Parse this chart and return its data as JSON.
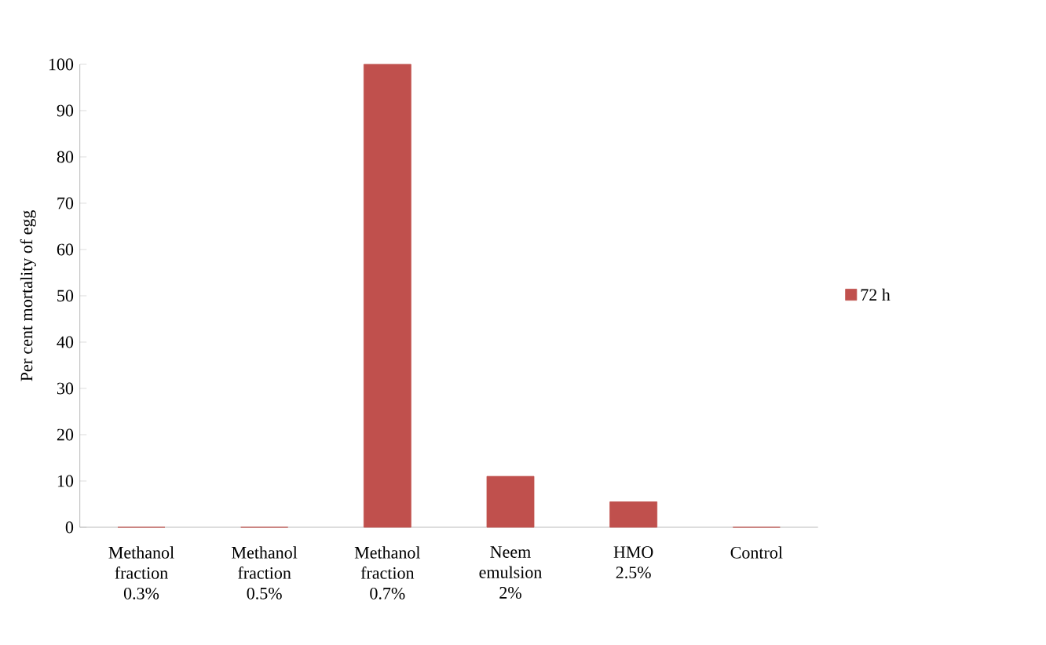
{
  "chart_data": {
    "type": "bar",
    "ylabel": "Per cent mortality of egg",
    "categories": [
      "Methanol fraction 0.3%",
      "Methanol fraction 0.5%",
      "Methanol fraction 0.7%",
      "Neem emulsion 2%",
      "HMO 2.5%",
      "Control"
    ],
    "series": [
      {
        "name": "72 h",
        "color": "#c0504d",
        "values": [
          0,
          0,
          100,
          11,
          5.5,
          0
        ]
      }
    ],
    "ylim": [
      0,
      100
    ],
    "yticks": [
      0,
      10,
      20,
      30,
      40,
      50,
      60,
      70,
      80,
      90,
      100
    ],
    "legend": "right"
  }
}
